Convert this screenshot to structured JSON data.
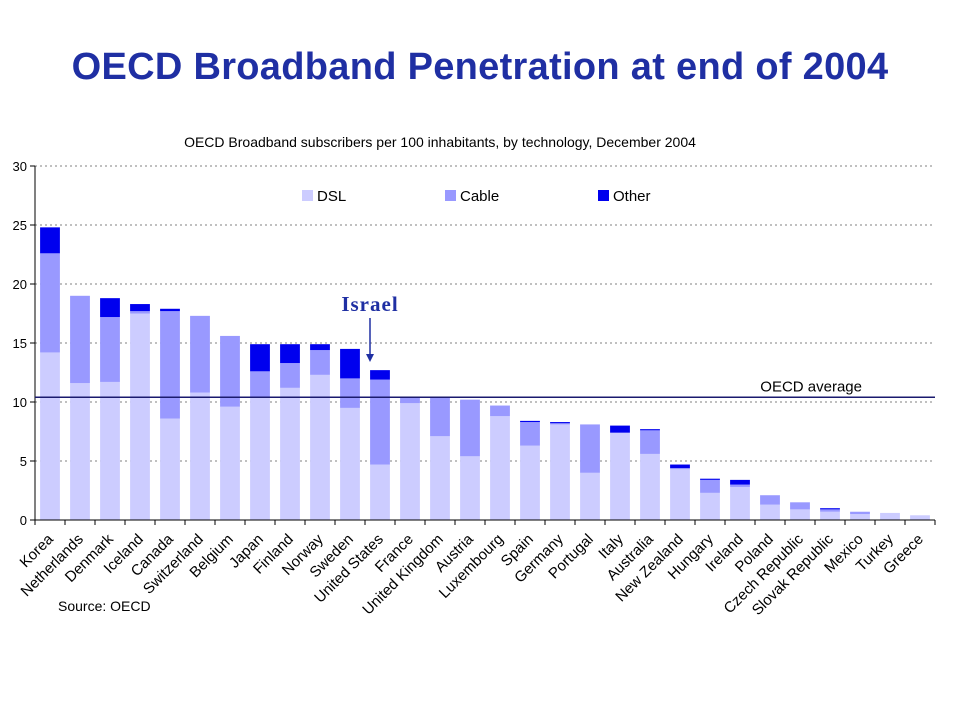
{
  "slide": {
    "title": "OECD Broadband Penetration at end of  2004"
  },
  "colors": {
    "dsl": "#ccccff",
    "cable": "#9999ff",
    "other": "#0000ee",
    "title": "#1f2fa3",
    "avg_line": "#1a1a6e"
  },
  "chart_data": {
    "type": "bar",
    "stacked": true,
    "title": "OECD Broadband subscribers per 100 inhabitants, by technology, December 2004",
    "ylim": [
      0,
      30
    ],
    "yticks": [
      "0",
      "5",
      "10",
      "15",
      "20",
      "25",
      "30"
    ],
    "legend": [
      "DSL",
      "Cable",
      "Other"
    ],
    "categories": [
      "Korea",
      "Netherlands",
      "Denmark",
      "Iceland",
      "Canada",
      "Switzerland",
      "Belgium",
      "Japan",
      "Finland",
      "Norway",
      "Sweden",
      "United States",
      "France",
      "United Kingdom",
      "Austria",
      "Luxembourg",
      "Spain",
      "Germany",
      "Portugal",
      "Italy",
      "Australia",
      "New Zealand",
      "Hungary",
      "Ireland",
      "Poland",
      "Czech Republic",
      "Slovak Republic",
      "Mexico",
      "Turkey",
      "Greece"
    ],
    "series": [
      {
        "name": "DSL",
        "values": [
          14.2,
          11.6,
          11.7,
          17.5,
          8.6,
          10.8,
          9.6,
          10.4,
          11.2,
          12.3,
          9.5,
          4.7,
          9.9,
          7.1,
          5.4,
          8.8,
          6.3,
          8.1,
          4.0,
          7.4,
          5.6,
          4.3,
          2.3,
          2.8,
          1.3,
          0.9,
          0.7,
          0.5,
          0.6,
          0.4
        ]
      },
      {
        "name": "Cable",
        "values": [
          8.4,
          7.4,
          5.5,
          0.2,
          9.1,
          6.5,
          6.0,
          2.2,
          2.1,
          2.1,
          2.5,
          7.2,
          0.5,
          3.3,
          4.8,
          0.9,
          2.0,
          0.1,
          4.1,
          0.0,
          2.0,
          0.1,
          1.1,
          0.2,
          0.8,
          0.6,
          0.2,
          0.2,
          0.0,
          0.0
        ]
      },
      {
        "name": "Other",
        "values": [
          2.2,
          0.0,
          1.6,
          0.6,
          0.2,
          0.0,
          0.0,
          2.3,
          1.6,
          0.5,
          2.5,
          0.8,
          0.0,
          0.0,
          0.0,
          0.0,
          0.1,
          0.1,
          0.0,
          0.6,
          0.1,
          0.3,
          0.1,
          0.4,
          0.0,
          0.0,
          0.1,
          0.0,
          0.0,
          0.0
        ]
      }
    ],
    "oecd_average": 10.4,
    "average_label": "OECD average",
    "source": "Source: OECD",
    "annotation": {
      "text": "Israel",
      "points_to": "United States"
    }
  }
}
